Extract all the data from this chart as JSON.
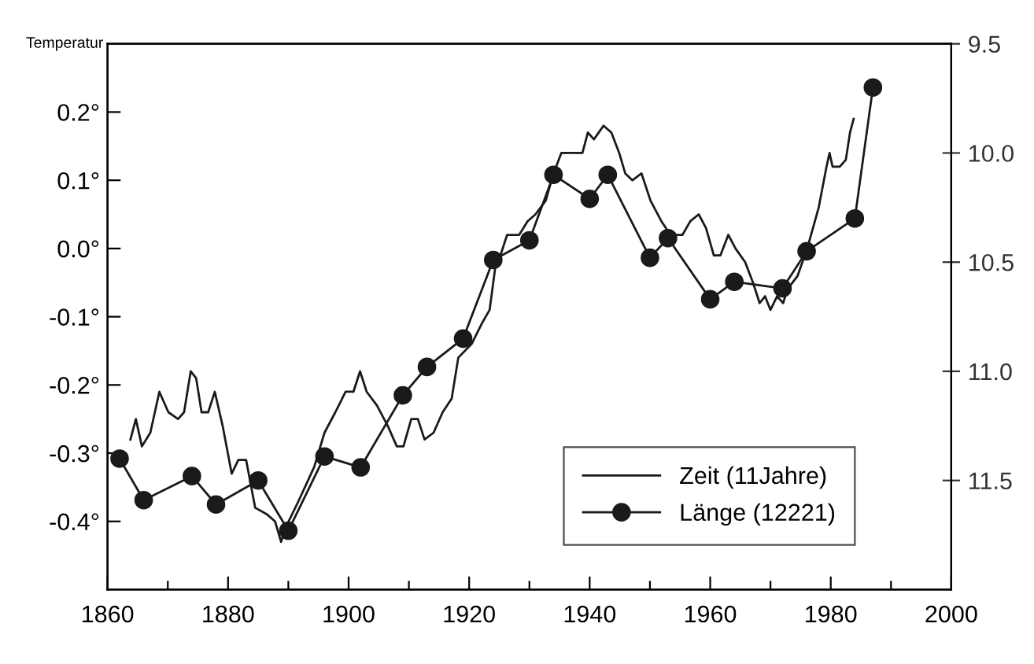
{
  "chart_data": {
    "type": "line",
    "ylabel": "Temperatur",
    "xlim": [
      1860,
      2000
    ],
    "xticks": [
      1860,
      {
        "value": 1870,
        "label": null
      },
      1880,
      {
        "value": 1890,
        "label": null
      },
      1900,
      {
        "value": 1910,
        "label": null
      },
      1920,
      {
        "value": 1930,
        "label": null
      },
      1940,
      {
        "value": 1950,
        "label": null
      },
      1960,
      {
        "value": 1970,
        "label": null
      },
      1980,
      {
        "value": 1990,
        "label": null
      },
      2000
    ],
    "ylim": [
      -0.5,
      0.3
    ],
    "yticks": [
      {
        "value": 0.2,
        "label": "0.2°"
      },
      {
        "value": 0.1,
        "label": "0.1°"
      },
      {
        "value": 0.0,
        "label": "0.0°"
      },
      {
        "value": -0.1,
        "label": "-0.1°"
      },
      {
        "value": -0.2,
        "label": "-0.2°"
      },
      {
        "value": -0.3,
        "label": "-0.3°"
      },
      {
        "value": -0.4,
        "label": "-0.4°"
      }
    ],
    "y2lim": [
      12.0,
      9.5
    ],
    "y2ticks": [
      9.5,
      {
        "value": 10.0,
        "label": "10.0"
      },
      10.5,
      {
        "value": 11.0,
        "label": "11.0"
      },
      11.5
    ],
    "grid": false,
    "legend": "bottom right",
    "series": [
      {
        "name": "Zeit (11Jahre)",
        "color": "#1a1a1a",
        "marker": "none",
        "line_style": "solid",
        "x": [
          1863.8,
          1864.7,
          1865.7,
          1867.1,
          1868.6,
          1870.1,
          1871.7,
          1872.7,
          1873.8,
          1874.7,
          1875.6,
          1876.7,
          1877.8,
          1879.1,
          1880.6,
          1881.7,
          1883.0,
          1884.5,
          1886.5,
          1887.8,
          1888.8,
          1889.5,
          1891.7,
          1894.3,
          1896.0,
          1897.8,
          1899.5,
          1900.8,
          1901.9,
          1903.0,
          1904.7,
          1906.5,
          1908.0,
          1909.1,
          1910.4,
          1911.5,
          1912.6,
          1914.1,
          1915.6,
          1917.1,
          1918.2,
          1920.4,
          1922.1,
          1923.4,
          1924.3,
          1925.2,
          1926.3,
          1928.3,
          1929.7,
          1931.0,
          1932.7,
          1934.0,
          1935.3,
          1936.6,
          1937.9,
          1938.8,
          1939.7,
          1940.7,
          1942.3,
          1943.6,
          1944.9,
          1945.9,
          1947.1,
          1948.6,
          1950.1,
          1951.9,
          1953.4,
          1955.4,
          1956.7,
          1958.1,
          1959.3,
          1960.6,
          1961.7,
          1963.0,
          1964.2,
          1965.8,
          1967.1,
          1968.2,
          1969.1,
          1970.0,
          1971.1,
          1972.1,
          1972.8,
          1974.5,
          1976.1,
          1978.0,
          1979.3,
          1979.8,
          1980.3,
          1981.5,
          1982.5,
          1983.2,
          1983.8
        ],
        "values": [
          -0.28,
          -0.25,
          -0.29,
          -0.27,
          -0.21,
          -0.24,
          -0.25,
          -0.24,
          -0.18,
          -0.19,
          -0.24,
          -0.24,
          -0.21,
          -0.26,
          -0.33,
          -0.31,
          -0.31,
          -0.38,
          -0.39,
          -0.4,
          -0.43,
          -0.41,
          -0.37,
          -0.32,
          -0.27,
          -0.24,
          -0.21,
          -0.21,
          -0.18,
          -0.21,
          -0.23,
          -0.26,
          -0.29,
          -0.29,
          -0.25,
          -0.25,
          -0.28,
          -0.27,
          -0.24,
          -0.22,
          -0.16,
          -0.14,
          -0.11,
          -0.09,
          -0.03,
          -0.01,
          0.02,
          0.02,
          0.04,
          0.05,
          0.07,
          0.11,
          0.14,
          0.14,
          0.14,
          0.14,
          0.17,
          0.16,
          0.18,
          0.17,
          0.14,
          0.11,
          0.1,
          0.11,
          0.07,
          0.04,
          0.02,
          0.02,
          0.04,
          0.05,
          0.03,
          -0.01,
          -0.01,
          0.02,
          0.0,
          -0.02,
          -0.05,
          -0.08,
          -0.07,
          -0.09,
          -0.07,
          -0.08,
          -0.06,
          -0.04,
          0.0,
          0.06,
          0.12,
          0.14,
          0.12,
          0.12,
          0.13,
          0.17,
          0.19
        ]
      },
      {
        "name": "Länge (12221)",
        "color": "#1a1a1a",
        "marker": "circle",
        "line_style": "solid",
        "axis": "y2",
        "x": [
          1862,
          1866,
          1874,
          1878,
          1885,
          1890,
          1896,
          1902,
          1909,
          1913,
          1919,
          1924,
          1930,
          1934,
          1940,
          1943,
          1950,
          1953,
          1960,
          1964,
          1972,
          1976,
          1984,
          1987
        ],
        "values": [
          11.4,
          11.59,
          11.48,
          11.61,
          11.5,
          11.73,
          11.39,
          11.44,
          11.11,
          10.98,
          10.85,
          10.49,
          10.4,
          10.1,
          10.21,
          10.1,
          10.48,
          10.39,
          10.67,
          10.59,
          10.62,
          10.45,
          10.3,
          9.7
        ]
      }
    ]
  }
}
